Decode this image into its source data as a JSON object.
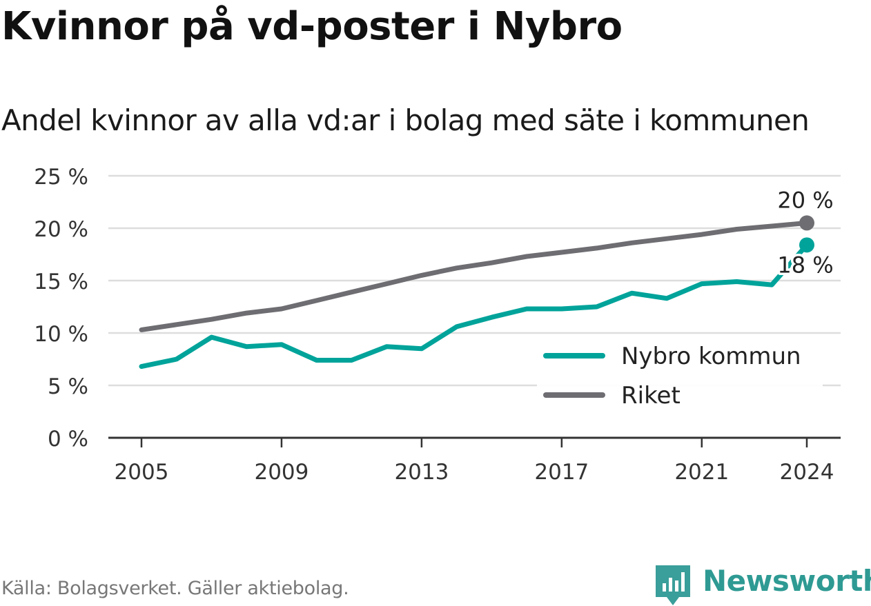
{
  "title": "Kvinnor på vd-poster i Nybro",
  "subtitle": "Andel kvinnor av alla vd:ar i bolag med säte i kommunen",
  "source": "Källa: Bolagsverket. Gäller aktiebolag.",
  "brand": {
    "name": "Newsworthy",
    "icon": "newsworthy-logo-icon"
  },
  "colors": {
    "nybro": "#00a39a",
    "riket": "#6e6d72",
    "grid": "#dddddd",
    "axis": "#333333"
  },
  "chart_data": {
    "type": "line",
    "x": [
      2005,
      2006,
      2007,
      2008,
      2009,
      2010,
      2011,
      2012,
      2013,
      2014,
      2015,
      2016,
      2017,
      2018,
      2019,
      2020,
      2021,
      2022,
      2023,
      2024
    ],
    "series": [
      {
        "name": "Nybro kommun",
        "color": "#00a39a",
        "values": [
          6.8,
          7.5,
          9.6,
          8.7,
          8.9,
          7.4,
          7.4,
          8.7,
          8.5,
          10.6,
          11.5,
          12.3,
          12.3,
          12.5,
          13.8,
          13.3,
          14.7,
          14.9,
          14.6,
          18.4
        ],
        "end_label": "18 %"
      },
      {
        "name": "Riket",
        "color": "#6e6d72",
        "values": [
          10.3,
          10.8,
          11.3,
          11.9,
          12.3,
          13.1,
          13.9,
          14.7,
          15.5,
          16.2,
          16.7,
          17.3,
          17.7,
          18.1,
          18.6,
          19.0,
          19.4,
          19.9,
          20.2,
          20.5
        ],
        "end_label": "20 %"
      }
    ],
    "yticks": [
      "0 %",
      "5 %",
      "10 %",
      "15 %",
      "20 %",
      "25 %"
    ],
    "ytick_values": [
      0,
      5,
      10,
      15,
      20,
      25
    ],
    "xticks": [
      "2005",
      "2009",
      "2013",
      "2017",
      "2021",
      "2024"
    ],
    "xtick_values": [
      2005,
      2009,
      2013,
      2017,
      2021,
      2024
    ],
    "ylim": [
      0,
      25
    ],
    "xlim": [
      2005,
      2024
    ],
    "grid": true,
    "legend": [
      "Nybro kommun",
      "Riket"
    ],
    "legend_position": "bottom-right",
    "xlabel": "",
    "ylabel": ""
  }
}
